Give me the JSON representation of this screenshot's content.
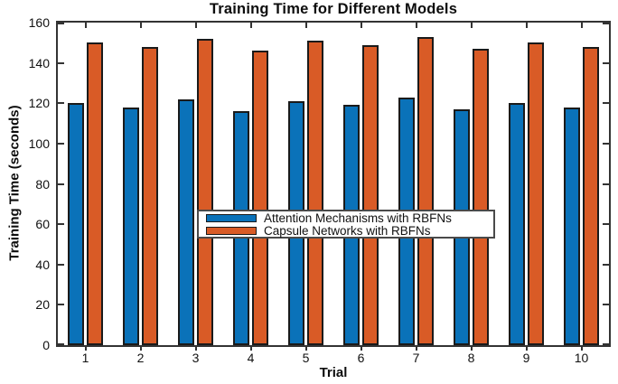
{
  "chart_data": {
    "type": "bar",
    "title": "Training Time for Different Models",
    "xlabel": "Trial",
    "ylabel": "Training Time (seconds)",
    "categories": [
      "1",
      "2",
      "3",
      "4",
      "5",
      "6",
      "7",
      "8",
      "9",
      "10"
    ],
    "series": [
      {
        "name": "Attention Mechanisms with RBFNs",
        "color": "#0A72B9",
        "values": [
          120,
          118,
          122,
          116,
          121,
          119,
          123,
          117,
          120,
          118
        ]
      },
      {
        "name": "Capsule Networks with RBFNs",
        "color": "#D95B26",
        "values": [
          150,
          148,
          152,
          146,
          151,
          149,
          153,
          147,
          150,
          148
        ]
      }
    ],
    "ylim": [
      0,
      160
    ],
    "yticks": [
      0,
      20,
      40,
      60,
      80,
      100,
      120,
      140,
      160
    ],
    "grid": false,
    "legend_position": "inside-center-left",
    "bar_edge_color": "#1a1a1a",
    "axis_color": "#333333"
  }
}
